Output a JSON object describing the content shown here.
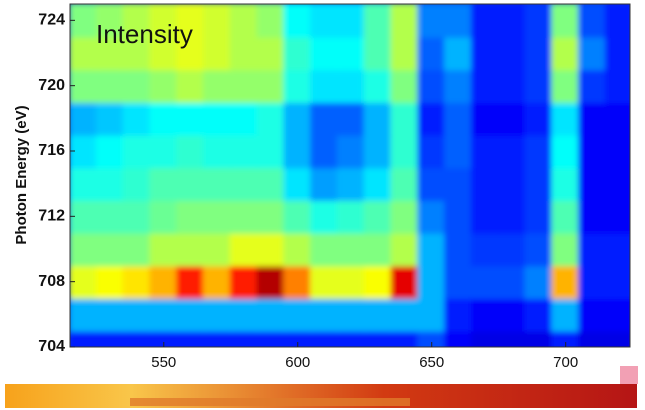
{
  "chart_data": {
    "type": "heatmap",
    "ylabel": "Photon Energy (eV)",
    "annotation": "Intensity",
    "colormap": "jet",
    "x": [
      520,
      530,
      540,
      550,
      560,
      570,
      580,
      590,
      600,
      610,
      620,
      630,
      640,
      650,
      660,
      670,
      680,
      690,
      700,
      710,
      720
    ],
    "y": [
      704,
      706,
      708,
      710,
      712,
      714,
      716,
      718,
      720,
      722,
      724
    ],
    "z": [
      [
        0.15,
        0.15,
        0.15,
        0.15,
        0.15,
        0.15,
        0.15,
        0.15,
        0.15,
        0.15,
        0.15,
        0.15,
        0.15,
        0.2,
        0.12,
        0.1,
        0.1,
        0.1,
        0.15,
        0.1,
        0.1
      ],
      [
        0.3,
        0.3,
        0.3,
        0.3,
        0.3,
        0.3,
        0.3,
        0.3,
        0.3,
        0.3,
        0.3,
        0.3,
        0.3,
        0.3,
        0.15,
        0.12,
        0.12,
        0.15,
        0.3,
        0.12,
        0.12
      ],
      [
        0.6,
        0.62,
        0.65,
        0.7,
        0.85,
        0.7,
        0.85,
        0.95,
        0.75,
        0.6,
        0.6,
        0.62,
        0.9,
        0.3,
        0.2,
        0.2,
        0.2,
        0.25,
        0.7,
        0.15,
        0.15
      ],
      [
        0.5,
        0.5,
        0.5,
        0.55,
        0.55,
        0.55,
        0.6,
        0.6,
        0.55,
        0.5,
        0.5,
        0.5,
        0.55,
        0.3,
        0.2,
        0.18,
        0.18,
        0.2,
        0.5,
        0.15,
        0.15
      ],
      [
        0.45,
        0.45,
        0.45,
        0.48,
        0.5,
        0.5,
        0.5,
        0.5,
        0.45,
        0.4,
        0.42,
        0.45,
        0.5,
        0.25,
        0.2,
        0.15,
        0.15,
        0.18,
        0.45,
        0.12,
        0.12
      ],
      [
        0.4,
        0.4,
        0.42,
        0.45,
        0.45,
        0.45,
        0.45,
        0.45,
        0.35,
        0.28,
        0.3,
        0.35,
        0.45,
        0.2,
        0.2,
        0.15,
        0.15,
        0.18,
        0.4,
        0.12,
        0.12
      ],
      [
        0.35,
        0.38,
        0.4,
        0.4,
        0.42,
        0.4,
        0.4,
        0.4,
        0.3,
        0.22,
        0.25,
        0.3,
        0.42,
        0.18,
        0.22,
        0.15,
        0.15,
        0.18,
        0.38,
        0.12,
        0.12
      ],
      [
        0.3,
        0.32,
        0.35,
        0.38,
        0.38,
        0.38,
        0.38,
        0.4,
        0.3,
        0.22,
        0.22,
        0.3,
        0.42,
        0.15,
        0.22,
        0.12,
        0.12,
        0.15,
        0.35,
        0.12,
        0.12
      ],
      [
        0.5,
        0.5,
        0.5,
        0.52,
        0.55,
        0.52,
        0.52,
        0.52,
        0.4,
        0.35,
        0.35,
        0.4,
        0.5,
        0.2,
        0.25,
        0.15,
        0.15,
        0.18,
        0.5,
        0.18,
        0.15
      ],
      [
        0.55,
        0.55,
        0.55,
        0.58,
        0.6,
        0.58,
        0.55,
        0.55,
        0.42,
        0.38,
        0.38,
        0.45,
        0.55,
        0.22,
        0.3,
        0.15,
        0.15,
        0.18,
        0.55,
        0.25,
        0.15
      ],
      [
        0.5,
        0.52,
        0.55,
        0.58,
        0.6,
        0.58,
        0.55,
        0.52,
        0.38,
        0.35,
        0.35,
        0.45,
        0.55,
        0.25,
        0.25,
        0.15,
        0.15,
        0.18,
        0.5,
        0.2,
        0.15
      ]
    ],
    "xlim": [
      515,
      724
    ],
    "ylim": [
      704,
      725
    ],
    "xticks": [
      550,
      600,
      650,
      700
    ],
    "yticks": [
      704,
      708,
      712,
      716,
      720,
      724
    ]
  }
}
